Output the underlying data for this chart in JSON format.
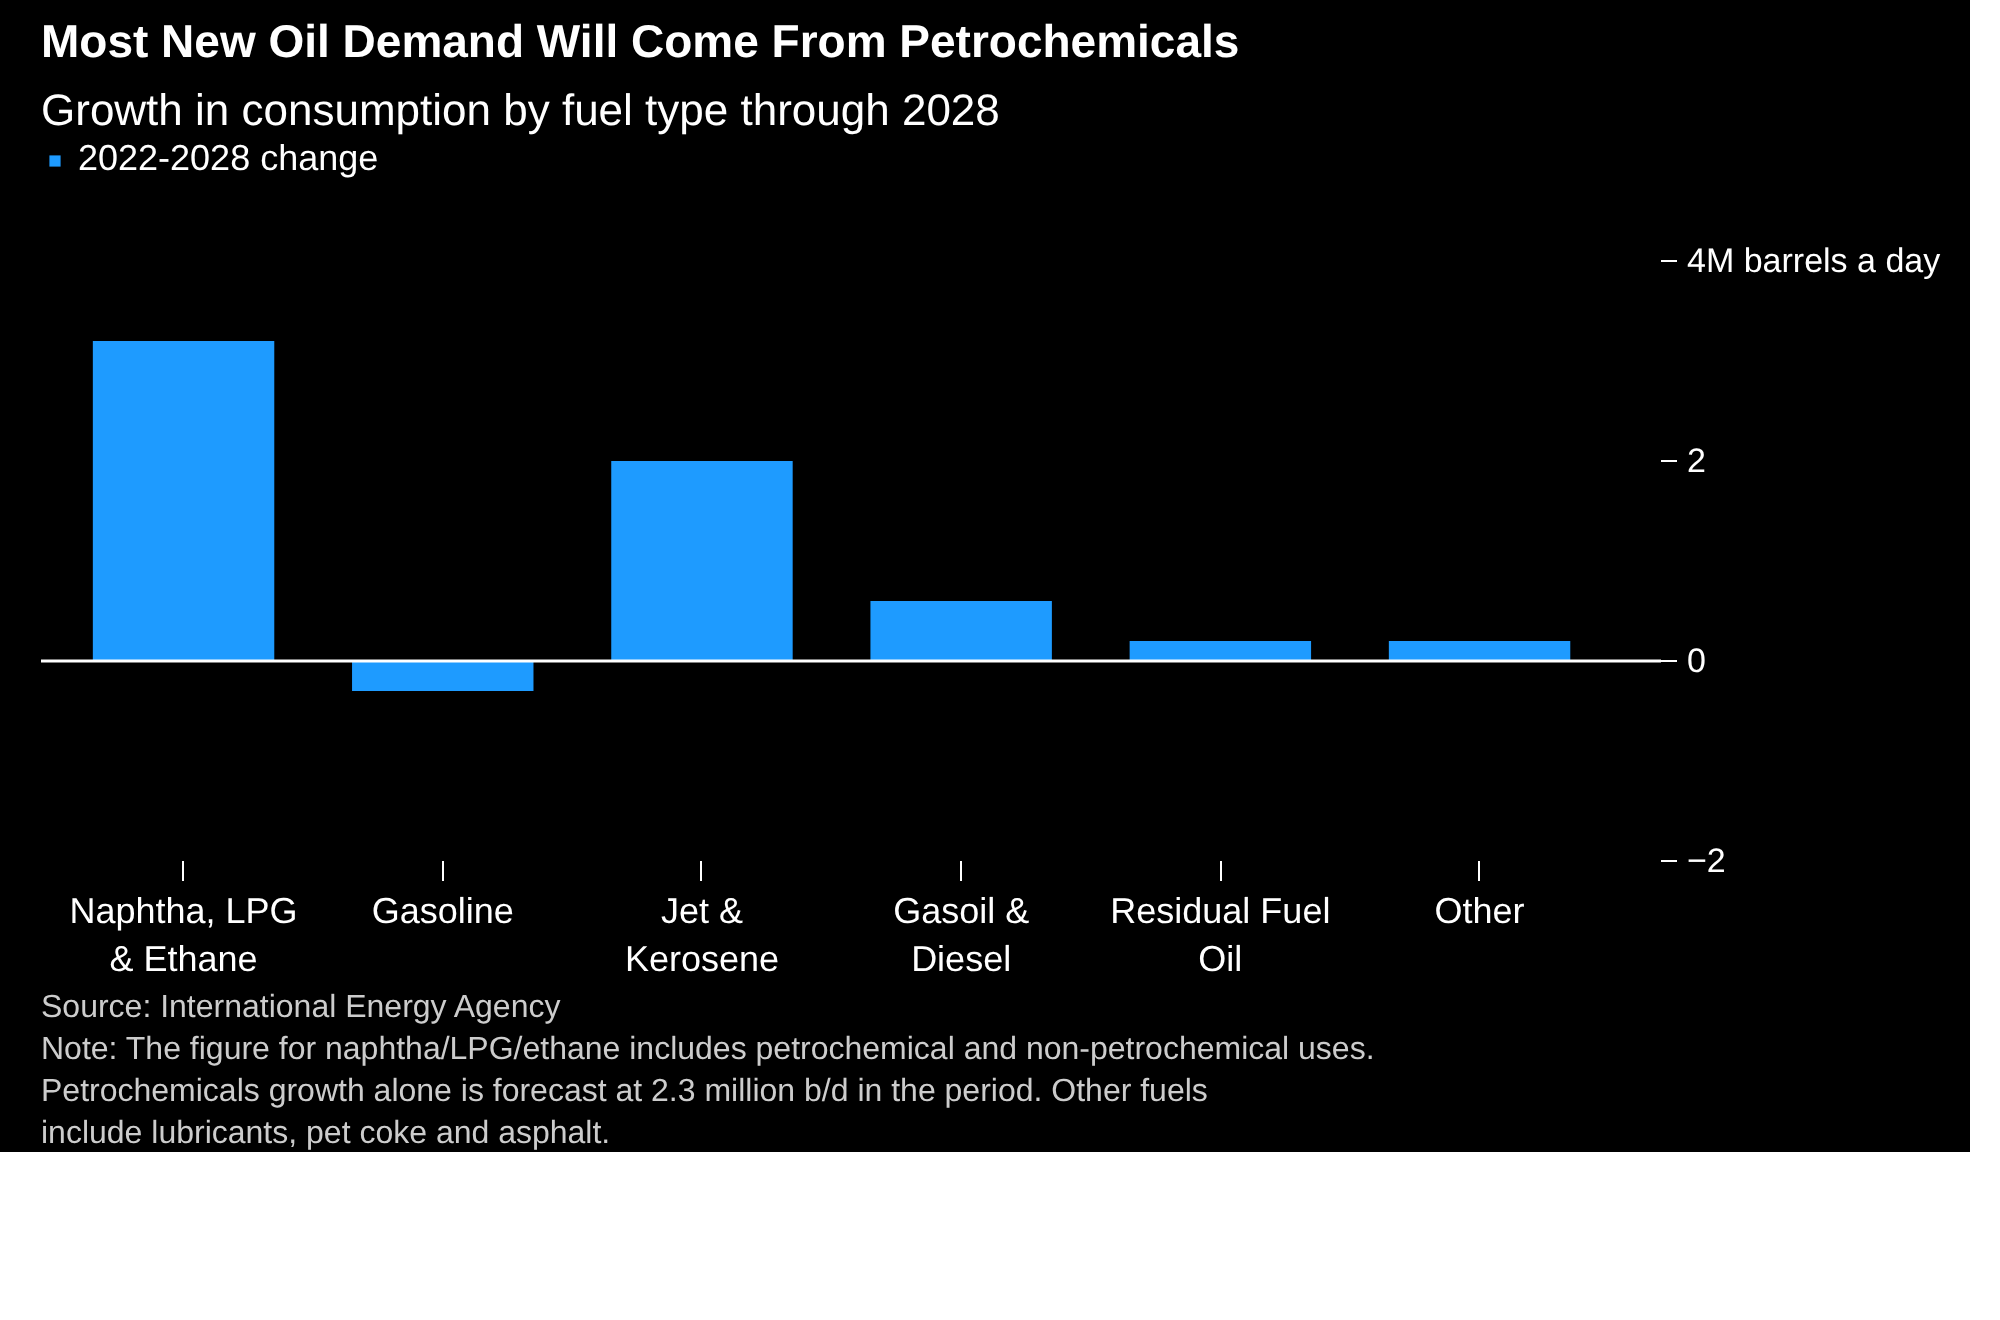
{
  "chart_data": {
    "type": "bar",
    "title": "Most New Oil Demand Will Come From Petrochemicals",
    "subtitle": "Growth in consumption by fuel type through 2028",
    "categories": [
      "Naphtha, LPG & Ethane",
      "Gasoline",
      "Jet & Kerosene",
      "Gasoil & Diesel",
      "Residual Fuel Oil",
      "Other"
    ],
    "series": [
      {
        "name": "2022-2028 change",
        "color": "#1e9bff",
        "values": [
          3.2,
          -0.3,
          2.0,
          0.6,
          0.2,
          0.2
        ]
      }
    ],
    "ylim": [
      -2,
      4
    ],
    "yticks": [
      {
        "value": 4,
        "label": "4M barrels a day"
      },
      2,
      0,
      -2
    ],
    "ref_lines": [
      {
        "axis": "y",
        "value": 0,
        "color": "#ffffff"
      }
    ],
    "legend": "top left",
    "grid": false,
    "annotations": [
      "Source: International Energy Agency",
      "Note: The figure for naphtha/LPG/ethane includes petrochemical and non-petrochemical uses. Petrochemicals growth alone is forecast at 2.3 million b/d in the period. Other fuels include lubricants, pet coke and asphalt."
    ]
  }
}
